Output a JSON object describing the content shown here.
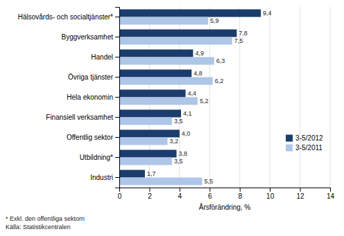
{
  "chart_data": {
    "type": "bar",
    "orientation": "horizontal",
    "categories": [
      "Industri",
      "Utbildning*",
      "Offentlig sektor",
      "Finansiell verksamhet",
      "Hela ekonomin",
      "Övriga tjänster",
      "Handel",
      "Byggverksamhet",
      "Hälsovårds- och socialtjänster*"
    ],
    "series": [
      {
        "name": "3-5/2012",
        "color": "#1a3d6e",
        "values": [
          1.7,
          3.8,
          4.0,
          4.1,
          4.4,
          4.8,
          4.9,
          7.8,
          9.4
        ],
        "value_labels": [
          "1,7",
          "3,8",
          "4,0",
          "4,1",
          "4,4",
          "4,8",
          "4,9",
          "7,8",
          "9,4"
        ]
      },
      {
        "name": "3-5/2011",
        "color": "#aec6e8",
        "values": [
          5.5,
          3.5,
          3.2,
          3.5,
          5.2,
          6.2,
          6.3,
          7.5,
          5.9
        ],
        "value_labels": [
          "5,5",
          "3,5",
          "3,2",
          "3,5",
          "5,2",
          "6,2",
          "6,3",
          "7,5",
          "5,9"
        ]
      }
    ],
    "xlabel": "Årsförändring, %",
    "xlim": [
      0,
      14
    ],
    "xticks": [
      0,
      2,
      4,
      6,
      8,
      10,
      12,
      14
    ],
    "grid": true,
    "legend": "lower right",
    "data_labels": true,
    "annotations": [
      "* Exkl. den offentliga sektorn",
      "Källa: Statistikcentralen"
    ]
  }
}
